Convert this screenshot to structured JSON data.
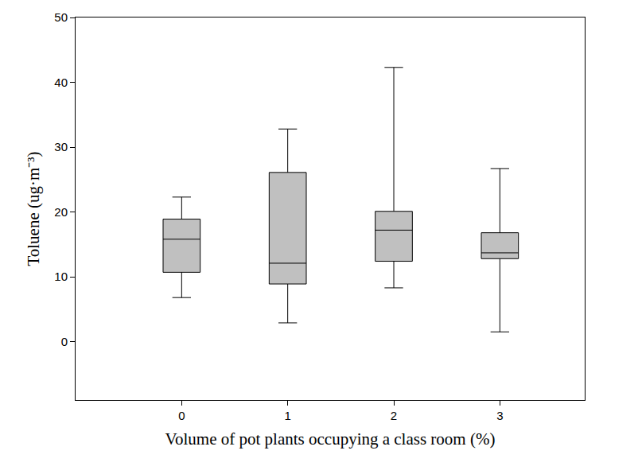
{
  "chart_data": {
    "type": "box",
    "x_label": "Volume of pot plants occupying a class room (%)",
    "y_label": "Toluene (ug·m⁻³)",
    "x": [
      0,
      1,
      2,
      3
    ],
    "min": [
      6.8,
      2.9,
      8.3,
      1.5
    ],
    "q1": [
      10.7,
      8.9,
      12.4,
      12.8
    ],
    "median": [
      15.8,
      12.1,
      17.2,
      13.7
    ],
    "q3": [
      18.9,
      26.1,
      20.1,
      16.8
    ],
    "max": [
      22.3,
      32.8,
      42.3,
      26.7
    ],
    "color": "#c0c0c0",
    "xlim": [
      -1,
      3.8
    ],
    "xticks": [
      0,
      1,
      2,
      3
    ],
    "ylim": [
      -9,
      50
    ],
    "yticks": [
      0,
      10,
      20,
      30,
      40,
      50
    ],
    "grid": false
  }
}
